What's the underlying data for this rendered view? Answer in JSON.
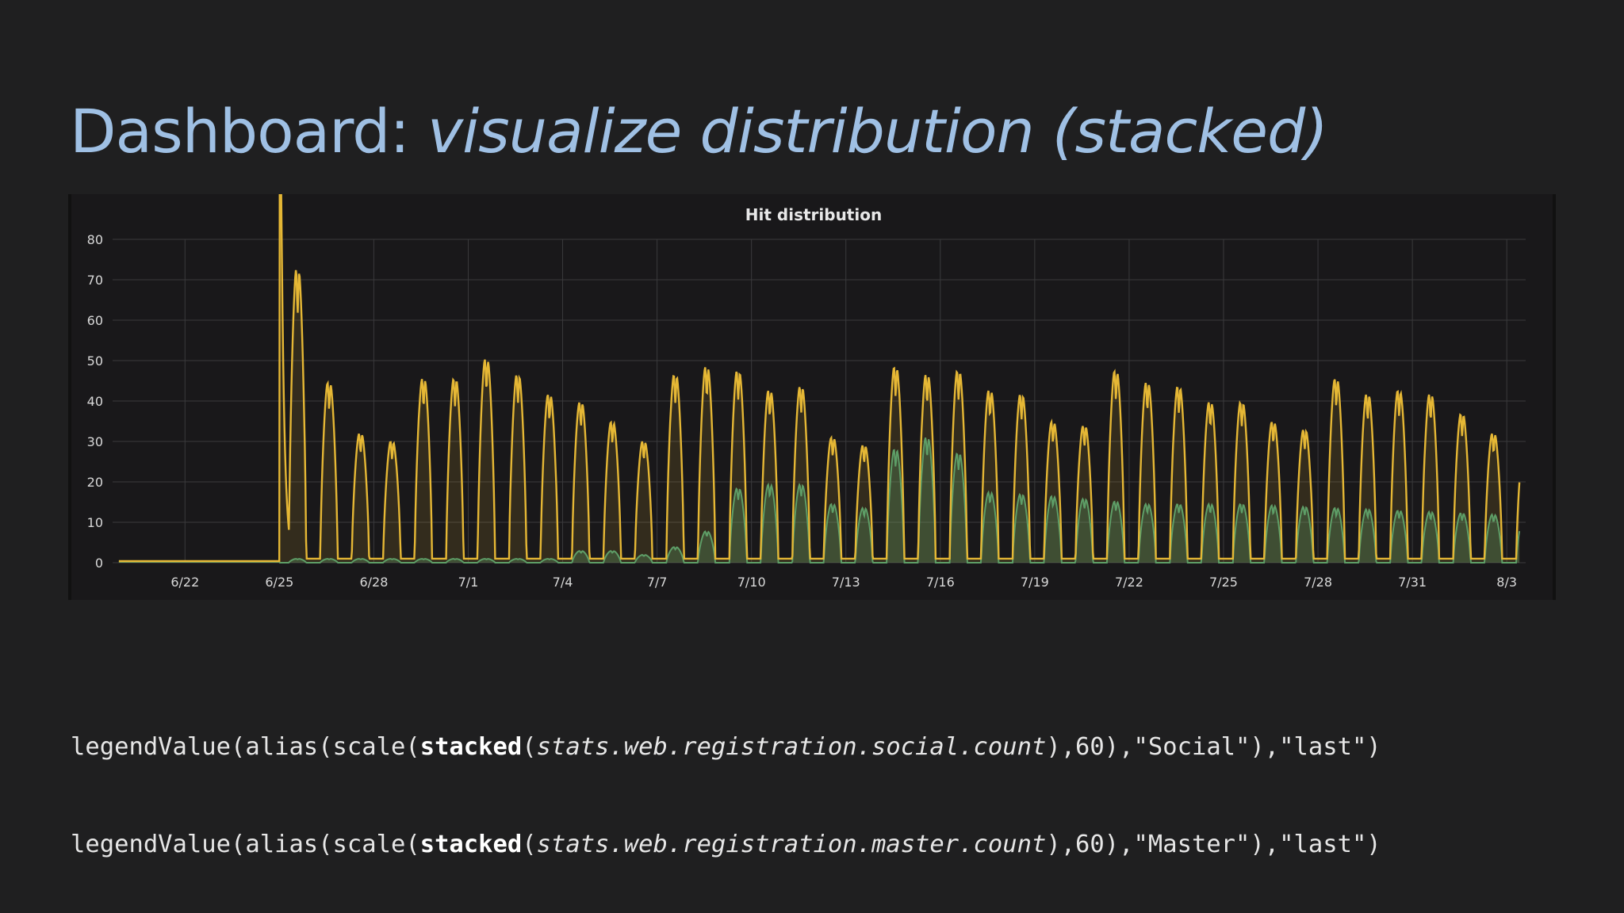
{
  "slide": {
    "title_plain": "Dashboard: ",
    "title_italic": "visualize distribution (stacked)"
  },
  "code_lines": [
    {
      "pre": "legendValue(alias(scale(",
      "fn": "stacked",
      "open": "(",
      "path": "stats.web.registration.social.count",
      "post": "),60),\"Social\"),\"last\")"
    },
    {
      "pre": "legendValue(alias(scale(",
      "fn": "stacked",
      "open": "(",
      "path": "stats.web.registration.master.count",
      "post": "),60),\"Master\"),\"last\")"
    }
  ],
  "colors": {
    "background": "#1f1f20",
    "panel": "#19181a",
    "title": "#9fc0e4",
    "grid": "#3a3a3c",
    "axis_text": "#d8d8d8",
    "social": "#e5b735",
    "master": "#5e9e67"
  },
  "chart_data": {
    "type": "area",
    "stacked": true,
    "title": "Hit distribution",
    "xlabel": "",
    "ylabel": "",
    "ylim": [
      0,
      80
    ],
    "yticks": [
      0,
      10,
      20,
      30,
      40,
      50,
      60,
      70,
      80
    ],
    "xticks": [
      "6/22",
      "6/25",
      "6/28",
      "7/1",
      "7/4",
      "7/7",
      "7/10",
      "7/13",
      "7/16",
      "7/19",
      "7/22",
      "7/25",
      "7/28",
      "7/31",
      "8/3"
    ],
    "x_range_days_from_6_22": [
      -2.3,
      42.6
    ],
    "grid": true,
    "legend": "none",
    "series": [
      {
        "name": "",
        "note_color": "master",
        "x": [
          "6/20",
          "6/24",
          "6/25",
          "6/28",
          "7/1",
          "7/2",
          "7/3",
          "7/4",
          "7/5",
          "7/6",
          "7/7",
          "7/8",
          "7/9",
          "7/10",
          "7/11",
          "7/12",
          "7/13",
          "7/14",
          "7/15",
          "7/16",
          "7/17",
          "7/19",
          "7/22",
          "7/25",
          "7/28",
          "7/31",
          "8/3"
        ],
        "daily_peak": [
          0,
          0,
          1,
          1,
          1,
          1,
          1,
          3,
          3,
          2,
          4,
          8,
          19,
          20,
          20,
          15,
          14,
          29,
          32,
          28,
          18,
          17,
          15,
          15,
          14,
          13,
          12
        ]
      },
      {
        "name": "",
        "note_color": "social",
        "x": [
          "6/20",
          "6/24",
          "6/25",
          "6/26",
          "6/27",
          "6/28",
          "6/29",
          "6/30",
          "7/1",
          "7/2",
          "7/3",
          "7/4",
          "7/5",
          "7/6",
          "7/7",
          "7/8",
          "7/9",
          "7/10",
          "7/11",
          "7/12",
          "7/13",
          "7/14",
          "7/15",
          "7/16",
          "7/17",
          "7/18",
          "7/19",
          "7/20",
          "7/21",
          "7/22",
          "7/23",
          "7/24",
          "7/25",
          "7/26",
          "7/27",
          "7/28",
          "7/29",
          "7/30",
          "7/31",
          "8/1",
          "8/2",
          "8/3"
        ],
        "daily_peak_total": [
          0,
          0,
          74,
          45,
          32,
          30,
          46,
          46,
          51,
          47,
          42,
          40,
          35,
          30,
          47,
          49,
          48,
          43,
          44,
          31,
          29,
          49,
          47,
          48,
          43,
          42,
          35,
          34,
          48,
          45,
          44,
          40,
          40,
          35,
          33,
          46,
          42,
          43,
          42,
          37,
          32,
          29
        ]
      }
    ]
  }
}
